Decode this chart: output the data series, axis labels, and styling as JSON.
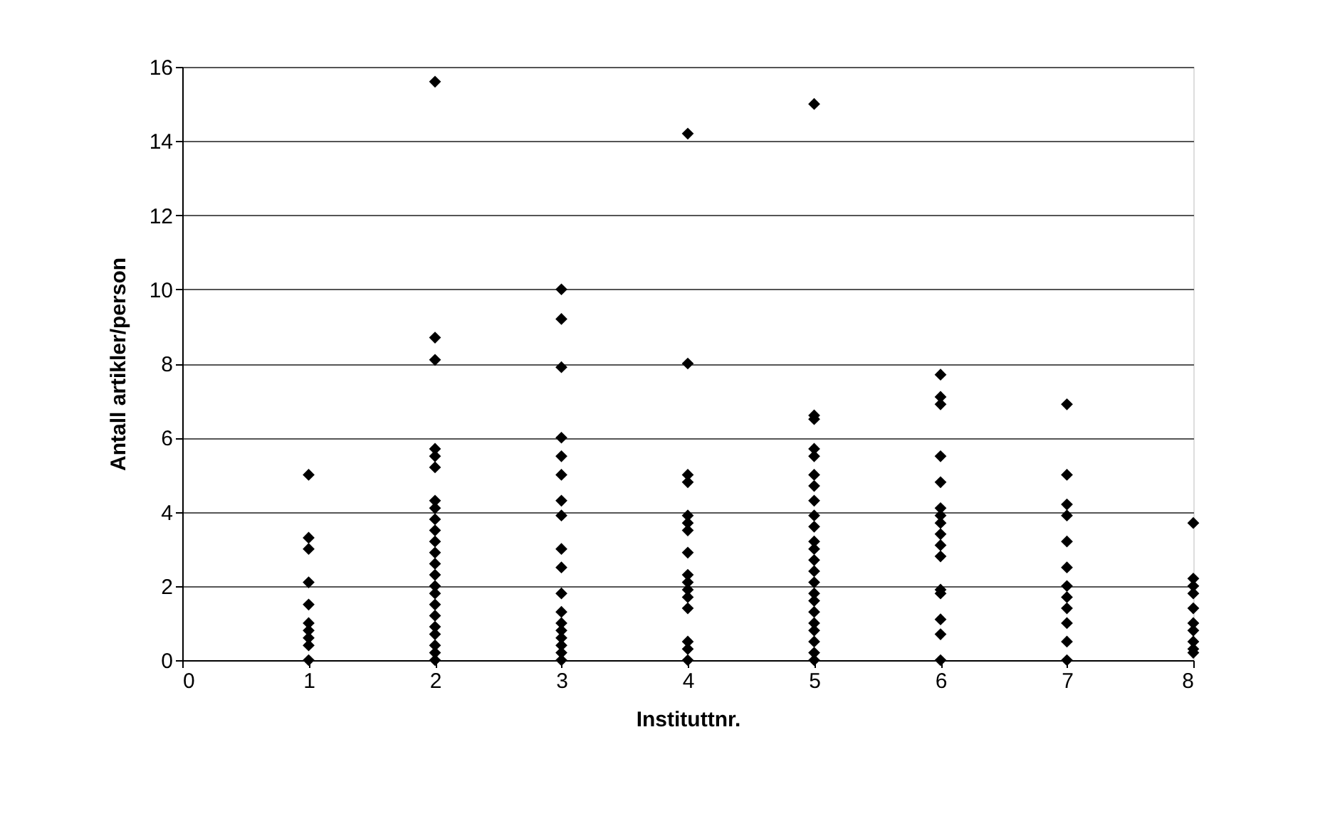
{
  "chart_data": {
    "type": "scatter",
    "xlabel": "Instituttnr.",
    "ylabel": "Antall artikler/person",
    "x": [
      1,
      1,
      1,
      1,
      1,
      1,
      1,
      1,
      1,
      1,
      2,
      2,
      2,
      2,
      2,
      2,
      2,
      2,
      2,
      2,
      2,
      2,
      2,
      2,
      2,
      2,
      2,
      2,
      2,
      2,
      2,
      2,
      2,
      3,
      3,
      3,
      3,
      3,
      3,
      3,
      3,
      3,
      3,
      3,
      3,
      3,
      3,
      3,
      3,
      3,
      3,
      4,
      4,
      4,
      4,
      4,
      4,
      4,
      4,
      4,
      4,
      4,
      4,
      4,
      4,
      4,
      4,
      5,
      5,
      5,
      5,
      5,
      5,
      5,
      5,
      5,
      5,
      5,
      5,
      5,
      5,
      5,
      5,
      5,
      5,
      5,
      5,
      5,
      5,
      5,
      6,
      6,
      6,
      6,
      6,
      6,
      6,
      6,
      6,
      6,
      6,
      6,
      6,
      6,
      6,
      6,
      7,
      7,
      7,
      7,
      7,
      7,
      7,
      7,
      7,
      7,
      7,
      7,
      8,
      8,
      8,
      8,
      8,
      8,
      8,
      8,
      8,
      8
    ],
    "values": [
      5.0,
      3.3,
      3.0,
      2.1,
      1.5,
      1.0,
      0.8,
      0.6,
      0.4,
      0.0,
      15.6,
      8.7,
      8.1,
      5.7,
      5.5,
      5.2,
      4.3,
      4.1,
      3.8,
      3.5,
      3.2,
      2.9,
      2.6,
      2.3,
      2.0,
      1.8,
      1.5,
      1.2,
      0.9,
      0.7,
      0.4,
      0.2,
      0.0,
      10.0,
      9.2,
      7.9,
      6.0,
      5.5,
      5.0,
      4.3,
      3.9,
      3.0,
      2.5,
      1.8,
      1.3,
      1.0,
      0.8,
      0.6,
      0.4,
      0.2,
      0.0,
      14.2,
      8.0,
      5.0,
      4.8,
      3.9,
      3.7,
      3.5,
      2.9,
      2.3,
      2.1,
      1.9,
      1.7,
      1.4,
      0.5,
      0.3,
      0.0,
      15.0,
      6.6,
      6.5,
      5.7,
      5.5,
      5.0,
      4.7,
      4.3,
      3.9,
      3.6,
      3.2,
      3.0,
      2.7,
      2.4,
      2.1,
      1.8,
      1.6,
      1.3,
      1.0,
      0.8,
      0.5,
      0.2,
      0.0,
      7.7,
      7.1,
      6.9,
      5.5,
      4.8,
      4.1,
      3.9,
      3.7,
      3.4,
      3.1,
      2.8,
      1.9,
      1.8,
      1.1,
      0.7,
      0.0,
      6.9,
      5.0,
      4.2,
      3.9,
      3.2,
      2.5,
      2.0,
      1.7,
      1.4,
      1.0,
      0.5,
      0.0,
      3.7,
      2.2,
      2.0,
      1.8,
      1.4,
      1.0,
      0.8,
      0.5,
      0.3,
      0.2
    ],
    "color": "#000000",
    "marker": "diamond",
    "xlim": [
      0,
      8
    ],
    "xticks": [
      0,
      1,
      2,
      3,
      4,
      5,
      6,
      7,
      8
    ],
    "ylim": [
      0,
      16
    ],
    "yticks": [
      0,
      2,
      4,
      6,
      8,
      10,
      12,
      14,
      16
    ],
    "grid": "y"
  }
}
